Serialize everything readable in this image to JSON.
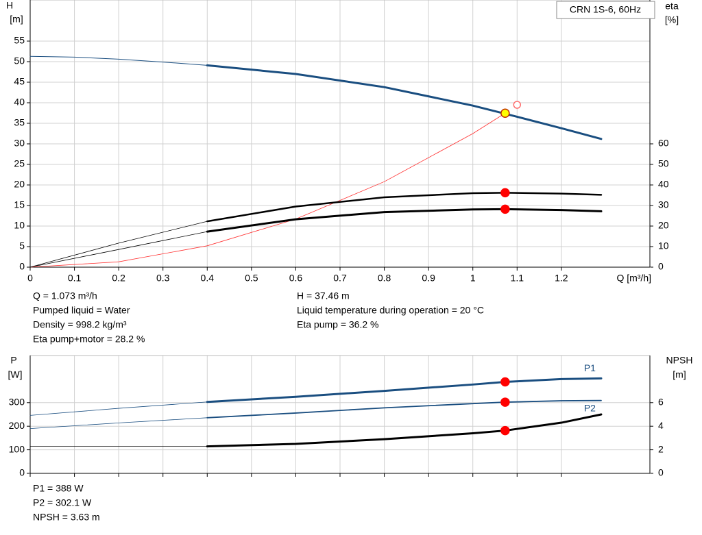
{
  "chart_data": [
    {
      "type": "line",
      "title": "CRN 1S-6, 60Hz",
      "ylabel": [
        "H",
        "[m]"
      ],
      "y2label": [
        "eta",
        "[%]"
      ],
      "xlabel": "Q [m³/h]",
      "xlim": [
        0,
        1.4
      ],
      "xticks": [
        0,
        0.1,
        0.2,
        0.3,
        0.4,
        0.5,
        0.6,
        0.7,
        0.8,
        0.9,
        1.0,
        1.1,
        1.2
      ],
      "ylim": [
        0,
        65
      ],
      "yticks": [
        0,
        5,
        10,
        15,
        20,
        25,
        30,
        35,
        40,
        45,
        50,
        55
      ],
      "y2lim": [
        0,
        130
      ],
      "y2ticks": [
        0,
        10,
        20,
        30,
        40,
        50,
        60
      ],
      "grid": true,
      "series": [
        {
          "color": "#1a4e80",
          "width": 1,
          "x": [
            0,
            0.1,
            0.2,
            0.3,
            0.4
          ],
          "values": [
            51.3,
            51.1,
            50.6,
            49.9,
            49.1
          ]
        },
        {
          "color": "#1a4e80",
          "width": 3,
          "x": [
            0.4,
            0.6,
            0.8,
            1.0,
            1.1,
            1.2,
            1.29
          ],
          "values": [
            49.1,
            47,
            43.8,
            39.3,
            36.6,
            33.8,
            31.2
          ]
        },
        {
          "color": "#ff3030",
          "width": 0.8,
          "x": [
            0,
            0.2,
            0.4,
            0.6,
            0.8,
            1.0,
            1.073
          ],
          "values": [
            0,
            1.3,
            5.2,
            11.7,
            20.8,
            32.5,
            37.46
          ]
        },
        {
          "color": "#000000",
          "width": 0.8,
          "axis": "y2",
          "x": [
            0,
            0.2,
            0.4
          ],
          "values": [
            0,
            11.7,
            22.3
          ]
        },
        {
          "color": "#000000",
          "width": 2.5,
          "axis": "y2",
          "x": [
            0.4,
            0.6,
            0.8,
            1.0,
            1.073,
            1.2,
            1.29
          ],
          "values": [
            22.3,
            29.5,
            34,
            36,
            36.2,
            35.8,
            35.2
          ]
        },
        {
          "color": "#000000",
          "width": 0.8,
          "axis": "y2",
          "x": [
            0,
            0.2,
            0.4
          ],
          "values": [
            0,
            8.6,
            17.3
          ]
        },
        {
          "color": "#000000",
          "width": 3,
          "axis": "y2",
          "x": [
            0.4,
            0.6,
            0.8,
            1.0,
            1.073,
            1.2,
            1.29
          ],
          "values": [
            17.3,
            23.3,
            26.8,
            28.1,
            28.2,
            27.8,
            27.2
          ]
        }
      ],
      "points": [
        {
          "x": 1.073,
          "value": 37.46,
          "fill": "#ffff00",
          "stroke": "#c03000"
        },
        {
          "x": 1.1,
          "value": 39.5,
          "fill": "#ffffff",
          "stroke": "#ff7070"
        },
        {
          "x": 1.073,
          "value": 36.2,
          "axis": "y2",
          "fill": "#ff0000",
          "stroke": "#ff0000"
        },
        {
          "x": 1.073,
          "value": 28.2,
          "axis": "y2",
          "fill": "#ff0000",
          "stroke": "#ff0000"
        }
      ],
      "info": [
        [
          "Q = 1.073 m³/h",
          "Pumped liquid = Water",
          "Density = 998.2 kg/m³",
          "Eta pump+motor = 28.2 %"
        ],
        [
          "H = 37.46 m",
          "Liquid temperature during operation = 20 °C",
          "Eta pump = 36.2 %"
        ]
      ]
    },
    {
      "type": "line",
      "ylabel": [
        "P",
        "[W]"
      ],
      "y2label": [
        "NPSH",
        "[m]"
      ],
      "xtick_labels": false,
      "xlim": [
        0,
        1.4
      ],
      "xticks": [
        0,
        0.1,
        0.2,
        0.3,
        0.4,
        0.5,
        0.6,
        0.7,
        0.8,
        0.9,
        1.0,
        1.1,
        1.2
      ],
      "ylim": [
        0,
        500
      ],
      "yticks": [
        0,
        100,
        200,
        300
      ],
      "y2lim": [
        0,
        10
      ],
      "y2ticks": [
        0,
        2,
        4,
        6
      ],
      "grid": true,
      "series": [
        {
          "color": "#1a4e80",
          "width": 0.8,
          "x": [
            0,
            0.2,
            0.4
          ],
          "values": [
            246,
            276,
            303
          ]
        },
        {
          "name": "P1",
          "color": "#1a4e80",
          "width": 3,
          "x": [
            0.4,
            0.6,
            0.8,
            1.0,
            1.073,
            1.2,
            1.29
          ],
          "values": [
            303,
            325,
            350,
            377,
            388,
            400,
            403
          ]
        },
        {
          "color": "#1a4e80",
          "width": 0.8,
          "x": [
            0,
            0.2,
            0.4
          ],
          "values": [
            190,
            214,
            236
          ]
        },
        {
          "name": "P2",
          "color": "#1a4e80",
          "width": 1.8,
          "x": [
            0.4,
            0.6,
            0.8,
            1.0,
            1.073,
            1.2,
            1.29
          ],
          "values": [
            236,
            256,
            278,
            296,
            302.1,
            308,
            309
          ]
        },
        {
          "color": "#000000",
          "width": 0.8,
          "axis": "y2",
          "x": [
            0,
            0.2,
            0.4
          ],
          "values": [
            2.29,
            2.29,
            2.29
          ]
        },
        {
          "color": "#000000",
          "width": 3,
          "axis": "y2",
          "x": [
            0.4,
            0.6,
            0.8,
            1.0,
            1.073,
            1.2,
            1.29
          ],
          "values": [
            2.29,
            2.5,
            2.9,
            3.4,
            3.63,
            4.3,
            5.0
          ]
        }
      ],
      "points": [
        {
          "x": 1.073,
          "value": 388,
          "fill": "#ff0000",
          "stroke": "#ff0000"
        },
        {
          "x": 1.073,
          "value": 302.1,
          "fill": "#ff0000",
          "stroke": "#ff0000"
        },
        {
          "x": 1.073,
          "value": 3.63,
          "axis": "y2",
          "fill": "#ff0000",
          "stroke": "#ff0000"
        }
      ],
      "info": [
        [
          "P1 = 388 W",
          "P2 = 302.1 W",
          "NPSH = 3.63 m"
        ]
      ]
    }
  ]
}
